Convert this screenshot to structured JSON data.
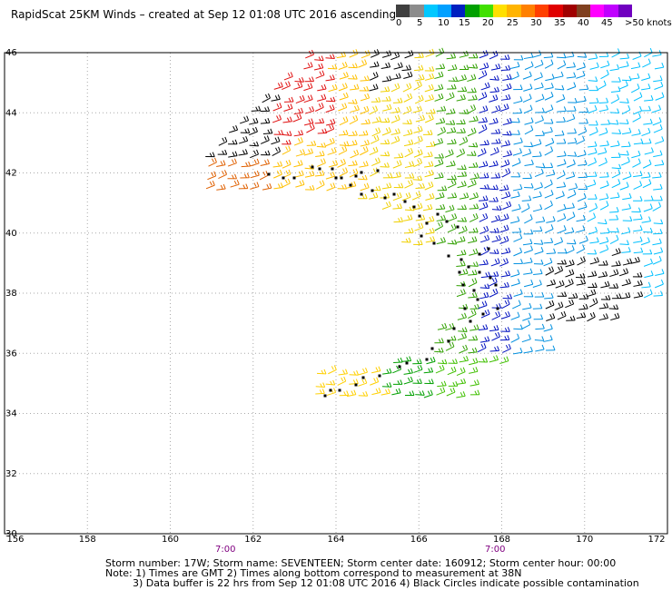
{
  "title": "RapidScat 25KM Winds – created at Sep 12 01:08 UTC 2016 ascending",
  "color_scale": {
    "colors": [
      "#3f3f3f",
      "#8c8c8c",
      "#00c8ff",
      "#00a0ff",
      "#0020c0",
      "#00a000",
      "#40e000",
      "#ffe000",
      "#ffb400",
      "#ff8000",
      "#ff4000",
      "#e00000",
      "#a00000",
      "#804020",
      "#ff00ff",
      "#c000ff",
      "#7000c0"
    ],
    "labels": [
      "0",
      "5",
      "10",
      "15",
      "20",
      "25",
      "30",
      "35",
      "40",
      "45",
      ">50 knots"
    ]
  },
  "map": {
    "lat_labels": [
      "46",
      "44",
      "42",
      "40",
      "38",
      "36",
      "34",
      "32",
      "30"
    ],
    "lon_labels": [
      "156",
      "158",
      "160",
      "162",
      "164",
      "166",
      "168",
      "170",
      "172"
    ],
    "time_labels": [
      "7:00",
      "7:00"
    ],
    "storm_track_color": "#000000"
  },
  "footer": {
    "line1": "Storm number: 17W;   Storm name: SEVENTEEN;   Storm center date: 160912;   Storm center hour: 00:00",
    "line2": "Note: 1) Times are GMT   2) Times along bottom correspond to measurement at 38N",
    "line3": "3) Data buffer is 22 hrs from Sep 12 01:08 UTC 2016   4) Black Circles indicate possible contamination"
  }
}
